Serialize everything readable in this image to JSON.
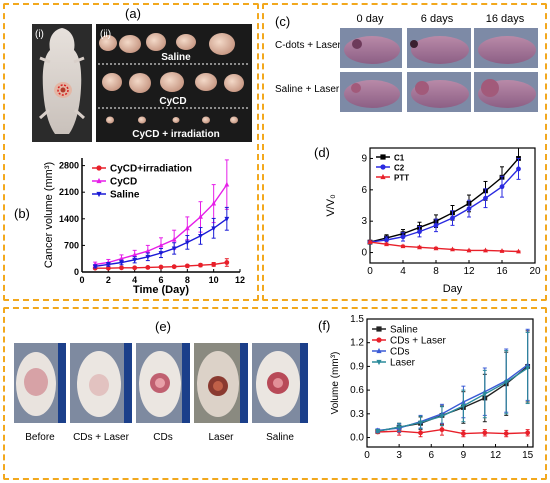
{
  "figure": {
    "panel_a": {
      "label": "(a)",
      "sub_i": "(i)",
      "sub_ii": "(ii)",
      "groups": [
        "Saline",
        "CyCD",
        "CyCD + irradiation"
      ]
    },
    "panel_b": {
      "label": "(b)"
    },
    "panel_c": {
      "label": "(c)",
      "columns": [
        "0 day",
        "6 days",
        "16 days"
      ],
      "rows": [
        "C-dots + Laser",
        "Saline + Laser"
      ]
    },
    "panel_d": {
      "label": "(d)"
    },
    "panel_e": {
      "label": "(e)",
      "captions": [
        "Before",
        "CDs + Laser",
        "CDs",
        "Laser",
        "Saline"
      ]
    },
    "panel_f": {
      "label": "(f)"
    }
  },
  "chart_data": [
    {
      "id": "b",
      "type": "line",
      "xlabel": "Time (Day)",
      "ylabel": "Cancer volume (mm³)",
      "xlim": [
        0,
        12
      ],
      "ylim": [
        0,
        3000
      ],
      "xticks": [
        "0",
        "2",
        "4",
        "6",
        "8",
        "10",
        "12"
      ],
      "yticks": [
        "0",
        "700",
        "1400",
        "2100",
        "2800"
      ],
      "legend": "top-left",
      "series": [
        {
          "name": "CyCD+irradiation",
          "color": "#e8202a",
          "marker": "circle",
          "x": [
            1,
            2,
            3,
            4,
            5,
            6,
            7,
            8,
            9,
            10,
            11
          ],
          "y": [
            100,
            100,
            110,
            110,
            120,
            130,
            140,
            160,
            180,
            200,
            250
          ],
          "err": [
            20,
            20,
            20,
            20,
            25,
            25,
            30,
            30,
            40,
            50,
            100
          ]
        },
        {
          "name": "CyCD",
          "color": "#e61ee8",
          "marker": "triangle-up",
          "x": [
            1,
            2,
            3,
            4,
            5,
            6,
            7,
            8,
            9,
            10,
            11
          ],
          "y": [
            200,
            250,
            350,
            450,
            550,
            700,
            850,
            1150,
            1450,
            1800,
            2300
          ],
          "err": [
            60,
            80,
            100,
            120,
            150,
            200,
            250,
            300,
            400,
            500,
            650
          ]
        },
        {
          "name": "Saline",
          "color": "#1a1ad6",
          "marker": "triangle-down",
          "x": [
            1,
            2,
            3,
            4,
            5,
            6,
            7,
            8,
            9,
            10,
            11
          ],
          "y": [
            150,
            200,
            250,
            320,
            400,
            500,
            620,
            780,
            950,
            1150,
            1400
          ],
          "err": [
            40,
            50,
            60,
            80,
            100,
            120,
            150,
            180,
            220,
            260,
            300
          ]
        }
      ]
    },
    {
      "id": "d",
      "type": "line",
      "xlabel": "Day",
      "ylabel": "V/V₀",
      "xlim": [
        0,
        20
      ],
      "ylim": [
        -1,
        10
      ],
      "xticks": [
        "0",
        "4",
        "8",
        "12",
        "16",
        "20"
      ],
      "yticks": [
        "0",
        "3",
        "6",
        "9"
      ],
      "legend": "top-left",
      "series": [
        {
          "name": "C1",
          "color": "#000000",
          "marker": "square",
          "x": [
            0,
            2,
            4,
            6,
            8,
            10,
            12,
            14,
            16,
            18
          ],
          "y": [
            1,
            1.4,
            1.8,
            2.4,
            3,
            3.8,
            4.7,
            5.9,
            7.2,
            9
          ],
          "err": [
            0.1,
            0.3,
            0.4,
            0.5,
            0.6,
            0.7,
            0.8,
            0.9,
            1.0,
            1.0
          ]
        },
        {
          "name": "C2",
          "color": "#2a2ae0",
          "marker": "circle",
          "x": [
            0,
            2,
            4,
            6,
            8,
            10,
            12,
            14,
            16,
            18
          ],
          "y": [
            1,
            1.2,
            1.5,
            2,
            2.6,
            3.3,
            4.2,
            5.2,
            6.3,
            8
          ],
          "err": [
            0.1,
            0.3,
            0.4,
            0.5,
            0.6,
            0.7,
            0.8,
            0.9,
            1.0,
            1.0
          ]
        },
        {
          "name": "PTT",
          "color": "#e8202a",
          "marker": "triangle-up",
          "x": [
            0,
            2,
            4,
            6,
            8,
            10,
            12,
            14,
            16,
            18
          ],
          "y": [
            1,
            0.8,
            0.6,
            0.5,
            0.4,
            0.3,
            0.2,
            0.2,
            0.15,
            0.1
          ],
          "err": [
            0.1,
            0.1,
            0.1,
            0.1,
            0.1,
            0.05,
            0.05,
            0.05,
            0.05,
            0.05
          ]
        }
      ]
    },
    {
      "id": "f",
      "type": "line",
      "xlabel": "",
      "ylabel": "Volume (mm³)",
      "xlim": [
        0,
        15.5
      ],
      "ylim": [
        -0.12,
        1.5
      ],
      "xticks": [
        "0",
        "3",
        "6",
        "9",
        "12",
        "15"
      ],
      "yticks": [
        "0.0",
        "0.3",
        "0.6",
        "0.9",
        "1.2",
        "1.5"
      ],
      "legend": "top-left",
      "series": [
        {
          "name": "Saline",
          "color": "#222222",
          "marker": "square",
          "x": [
            1,
            3,
            5,
            7,
            9,
            11,
            13,
            15
          ],
          "y": [
            0.08,
            0.13,
            0.18,
            0.28,
            0.38,
            0.5,
            0.68,
            0.9
          ],
          "err": [
            0.02,
            0.05,
            0.08,
            0.12,
            0.2,
            0.3,
            0.4,
            0.45
          ]
        },
        {
          "name": "CDs + Laser",
          "color": "#e8202a",
          "marker": "circle",
          "x": [
            1,
            3,
            5,
            7,
            9,
            11,
            13,
            15
          ],
          "y": [
            0.07,
            0.08,
            0.06,
            0.1,
            0.05,
            0.06,
            0.05,
            0.06
          ],
          "err": [
            0.02,
            0.05,
            0.05,
            0.07,
            0.04,
            0.04,
            0.04,
            0.04
          ]
        },
        {
          "name": "CDs",
          "color": "#3a5ad6",
          "marker": "triangle-up",
          "x": [
            1,
            3,
            5,
            7,
            9,
            11,
            13,
            15
          ],
          "y": [
            0.09,
            0.12,
            0.2,
            0.3,
            0.45,
            0.58,
            0.72,
            0.92
          ],
          "err": [
            0.02,
            0.05,
            0.08,
            0.12,
            0.2,
            0.3,
            0.4,
            0.45
          ]
        },
        {
          "name": "Laser",
          "color": "#2a8a9a",
          "marker": "triangle-down",
          "x": [
            1,
            3,
            5,
            7,
            9,
            11,
            13,
            15
          ],
          "y": [
            0.08,
            0.13,
            0.19,
            0.27,
            0.4,
            0.55,
            0.7,
            0.88
          ],
          "err": [
            0.02,
            0.05,
            0.08,
            0.12,
            0.2,
            0.3,
            0.4,
            0.45
          ]
        }
      ]
    }
  ]
}
